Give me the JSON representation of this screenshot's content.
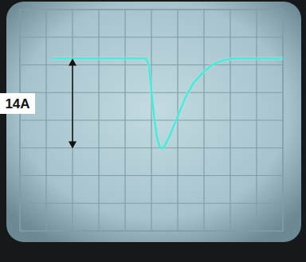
{
  "chart_data": {
    "type": "line",
    "x": [
      1.2,
      2,
      3,
      4,
      4.8,
      4.9,
      5.0,
      5.1,
      5.2,
      5.3,
      5.4,
      5.5,
      5.7,
      6.0,
      6.3,
      6.6,
      7.0,
      7.4,
      7.8,
      8.2,
      9,
      10
    ],
    "values": [
      0,
      0,
      0,
      0,
      0,
      -1,
      -5,
      -9,
      -12,
      -13.6,
      -14,
      -13.6,
      -12,
      -9,
      -6,
      -3.8,
      -2,
      -0.8,
      -0.2,
      0,
      0,
      0
    ],
    "color": "#56e3d8",
    "xlim": [
      0,
      10
    ],
    "xticks": [
      0,
      1,
      2,
      3,
      4,
      5,
      6,
      7,
      8,
      9,
      10
    ],
    "ylim": [
      -26.8,
      7.6
    ],
    "yticks": [
      -26.8,
      -22.5,
      -18.2,
      -13.9,
      -9.6,
      -5.3,
      -1.0,
      3.3,
      7.6
    ],
    "grid": true,
    "tick_labels": false,
    "annotations": [
      {
        "text": "14A",
        "x": 2.0,
        "y": [
          0,
          -14
        ]
      }
    ]
  }
}
